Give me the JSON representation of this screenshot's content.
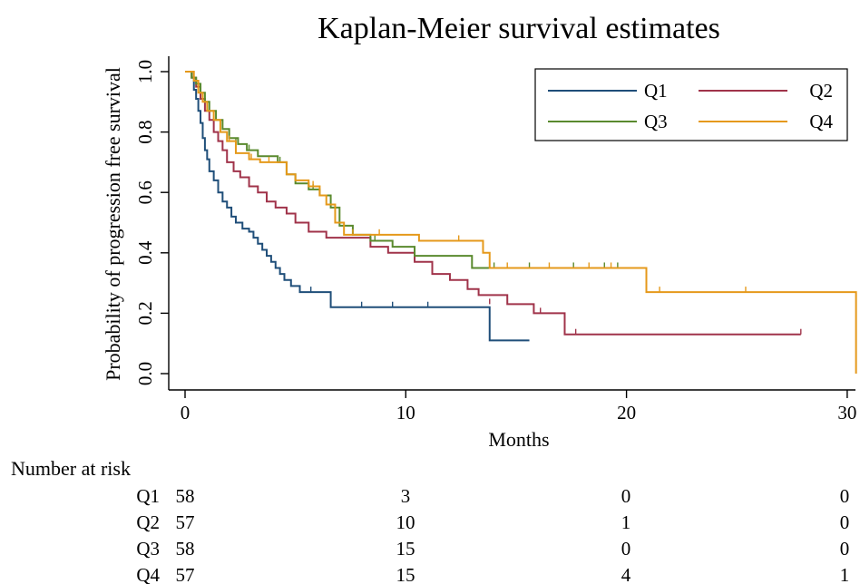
{
  "chart_data": {
    "type": "line",
    "subtype": "kaplan-meier step curves",
    "title": "Kaplan-Meier survival estimates",
    "xlabel": "Months",
    "ylabel": "Probability of progression free survival",
    "xlim": [
      0,
      30.5
    ],
    "ylim": [
      0,
      1.0
    ],
    "xticks": [
      0,
      10,
      20,
      30
    ],
    "yticks": [
      "0.0",
      "0.2",
      "0.4",
      "0.6",
      "0.8",
      "1.0"
    ],
    "grid": false,
    "legend_position": "top-right",
    "series": [
      {
        "name": "Q1",
        "color": "#1f4e79",
        "steps": [
          [
            0,
            1.0
          ],
          [
            0.3,
            0.98
          ],
          [
            0.4,
            0.94
          ],
          [
            0.5,
            0.91
          ],
          [
            0.6,
            0.87
          ],
          [
            0.7,
            0.83
          ],
          [
            0.8,
            0.78
          ],
          [
            0.9,
            0.74
          ],
          [
            1.0,
            0.71
          ],
          [
            1.1,
            0.67
          ],
          [
            1.3,
            0.64
          ],
          [
            1.5,
            0.6
          ],
          [
            1.7,
            0.57
          ],
          [
            1.9,
            0.55
          ],
          [
            2.1,
            0.52
          ],
          [
            2.3,
            0.5
          ],
          [
            2.6,
            0.48
          ],
          [
            2.9,
            0.47
          ],
          [
            3.1,
            0.45
          ],
          [
            3.3,
            0.43
          ],
          [
            3.5,
            0.41
          ],
          [
            3.7,
            0.39
          ],
          [
            3.9,
            0.37
          ],
          [
            4.1,
            0.35
          ],
          [
            4.3,
            0.33
          ],
          [
            4.5,
            0.31
          ],
          [
            4.8,
            0.29
          ],
          [
            5.2,
            0.27
          ],
          [
            6.6,
            0.22
          ],
          [
            13.8,
            0.11
          ],
          [
            15.6,
            0.11
          ]
        ],
        "censored": [
          [
            3.3,
            0.43
          ],
          [
            5.7,
            0.27
          ],
          [
            8.0,
            0.22
          ],
          [
            9.4,
            0.22
          ],
          [
            11.0,
            0.22
          ]
        ]
      },
      {
        "name": "Q2",
        "color": "#a0334a",
        "steps": [
          [
            0,
            1.0
          ],
          [
            0.3,
            0.98
          ],
          [
            0.5,
            0.95
          ],
          [
            0.7,
            0.91
          ],
          [
            0.9,
            0.87
          ],
          [
            1.1,
            0.84
          ],
          [
            1.3,
            0.8
          ],
          [
            1.5,
            0.77
          ],
          [
            1.7,
            0.74
          ],
          [
            1.9,
            0.7
          ],
          [
            2.2,
            0.67
          ],
          [
            2.5,
            0.65
          ],
          [
            2.9,
            0.62
          ],
          [
            3.3,
            0.6
          ],
          [
            3.7,
            0.57
          ],
          [
            4.1,
            0.55
          ],
          [
            4.6,
            0.53
          ],
          [
            5.0,
            0.5
          ],
          [
            5.6,
            0.47
          ],
          [
            6.4,
            0.45
          ],
          [
            8.4,
            0.42
          ],
          [
            9.2,
            0.4
          ],
          [
            10.4,
            0.37
          ],
          [
            11.2,
            0.33
          ],
          [
            12.0,
            0.31
          ],
          [
            12.8,
            0.28
          ],
          [
            13.3,
            0.26
          ],
          [
            14.6,
            0.23
          ],
          [
            15.8,
            0.2
          ],
          [
            17.2,
            0.13
          ],
          [
            27.9,
            0.13
          ]
        ],
        "censored": [
          [
            1.9,
            0.7
          ],
          [
            4.1,
            0.55
          ],
          [
            13.8,
            0.23
          ],
          [
            16.1,
            0.2
          ],
          [
            17.7,
            0.13
          ],
          [
            27.9,
            0.13
          ]
        ]
      },
      {
        "name": "Q3",
        "color": "#5a8a2e",
        "steps": [
          [
            0,
            1.0
          ],
          [
            0.3,
            0.98
          ],
          [
            0.5,
            0.96
          ],
          [
            0.7,
            0.93
          ],
          [
            0.9,
            0.9
          ],
          [
            1.1,
            0.87
          ],
          [
            1.4,
            0.84
          ],
          [
            1.7,
            0.81
          ],
          [
            2.0,
            0.78
          ],
          [
            2.4,
            0.76
          ],
          [
            2.8,
            0.74
          ],
          [
            3.3,
            0.72
          ],
          [
            4.2,
            0.7
          ],
          [
            4.6,
            0.66
          ],
          [
            5.0,
            0.63
          ],
          [
            5.6,
            0.61
          ],
          [
            6.1,
            0.59
          ],
          [
            6.6,
            0.55
          ],
          [
            7.0,
            0.49
          ],
          [
            7.6,
            0.46
          ],
          [
            8.4,
            0.44
          ],
          [
            9.4,
            0.42
          ],
          [
            10.4,
            0.39
          ],
          [
            13.0,
            0.35
          ],
          [
            19.6,
            0.35
          ]
        ],
        "censored": [
          [
            2.3,
            0.76
          ],
          [
            2.9,
            0.74
          ],
          [
            4.3,
            0.7
          ],
          [
            5.8,
            0.61
          ],
          [
            8.6,
            0.44
          ],
          [
            14.0,
            0.35
          ],
          [
            15.6,
            0.35
          ],
          [
            17.6,
            0.35
          ],
          [
            19.0,
            0.35
          ],
          [
            19.6,
            0.35
          ]
        ]
      },
      {
        "name": "Q4",
        "color": "#e5991b",
        "steps": [
          [
            0,
            1.0
          ],
          [
            0.4,
            0.97
          ],
          [
            0.6,
            0.93
          ],
          [
            0.8,
            0.9
          ],
          [
            1.0,
            0.87
          ],
          [
            1.3,
            0.84
          ],
          [
            1.6,
            0.8
          ],
          [
            1.9,
            0.77
          ],
          [
            2.3,
            0.73
          ],
          [
            2.9,
            0.71
          ],
          [
            3.4,
            0.7
          ],
          [
            4.6,
            0.66
          ],
          [
            5.0,
            0.64
          ],
          [
            5.6,
            0.62
          ],
          [
            6.1,
            0.59
          ],
          [
            6.4,
            0.56
          ],
          [
            6.8,
            0.5
          ],
          [
            7.2,
            0.46
          ],
          [
            10.6,
            0.44
          ],
          [
            13.5,
            0.4
          ],
          [
            13.8,
            0.35
          ],
          [
            20.9,
            0.27
          ],
          [
            30.4,
            0.0
          ]
        ],
        "censored": [
          [
            2.0,
            0.77
          ],
          [
            3.0,
            0.71
          ],
          [
            3.8,
            0.7
          ],
          [
            5.8,
            0.62
          ],
          [
            7.6,
            0.46
          ],
          [
            8.8,
            0.46
          ],
          [
            12.4,
            0.44
          ],
          [
            14.6,
            0.35
          ],
          [
            16.5,
            0.35
          ],
          [
            18.3,
            0.35
          ],
          [
            19.3,
            0.35
          ],
          [
            21.5,
            0.27
          ],
          [
            25.4,
            0.27
          ]
        ]
      }
    ],
    "risk_table": {
      "title": "Number at risk",
      "time_points": [
        0,
        10,
        20,
        30
      ],
      "rows": [
        {
          "group": "Q1",
          "counts": [
            "58",
            "3",
            "0",
            "0"
          ]
        },
        {
          "group": "Q2",
          "counts": [
            "57",
            "10",
            "1",
            "0"
          ]
        },
        {
          "group": "Q3",
          "counts": [
            "58",
            "15",
            "0",
            "0"
          ]
        },
        {
          "group": "Q4",
          "counts": [
            "57",
            "15",
            "4",
            "1"
          ]
        }
      ]
    }
  }
}
